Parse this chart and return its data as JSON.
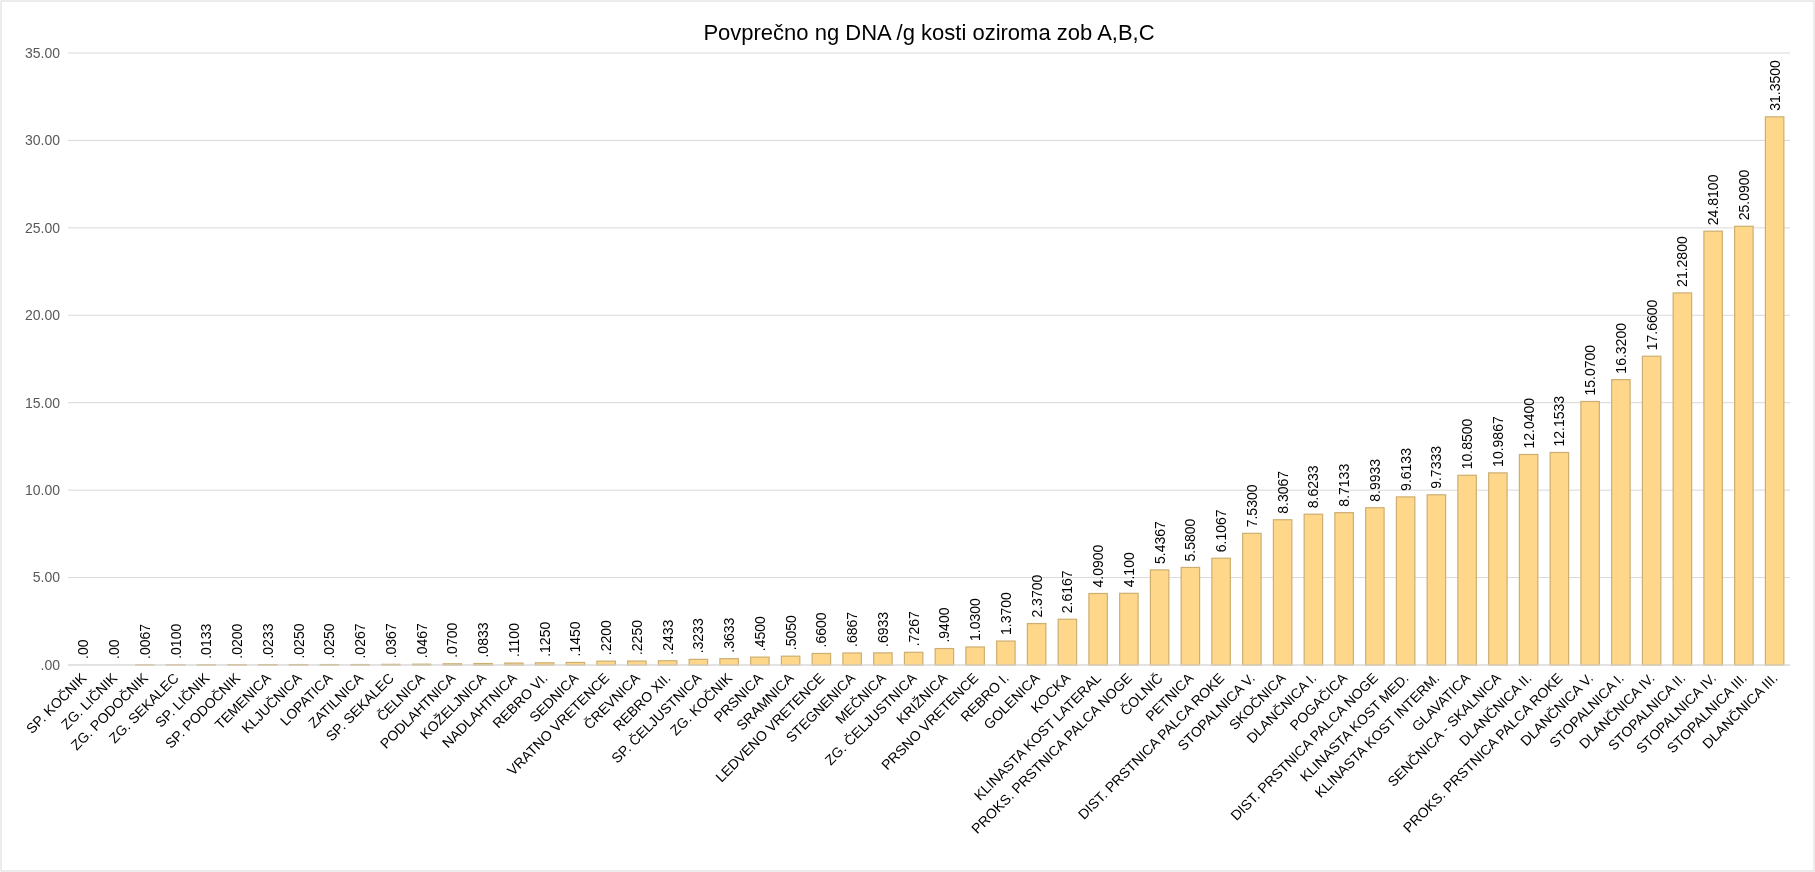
{
  "chart_data": {
    "type": "bar",
    "title": "Povprečno ng DNA /g kosti oziroma zob A,B,C",
    "categories": [
      "SP. KOČNIK",
      "ZG. LIČNIK",
      "ZG. PODOČNIK",
      "ZG. SEKALEC",
      "SP. LIČNIK",
      "SP. PODOČNIK",
      "TEMENICA",
      "KLJUČNICA",
      "LOPATICA",
      "ZATILNICA",
      "SP. SEKALEC",
      "ČELNICA",
      "PODLAHTNICA",
      "KOŽELJNICA",
      "NADLAHTNICA",
      "REBRO VI.",
      "SEDNICA",
      "VRATNO VRETENCE",
      "ČREVNICA",
      "REBRO XII.",
      "SP. ČELJUSTNICA",
      "ZG. KOČNIK",
      "PRSNICA",
      "SRAMNICA",
      "LEDVENO VRETENCE",
      "STEGNENICA",
      "MEČNICA",
      "ZG. ČELJUSTNICA",
      "KRIŽNICA",
      "PRSNO VRETENCE",
      "REBRO I.",
      "GOLENICA",
      "KOCKA",
      "KLINASTA KOST LATERAL",
      "PROKS. PRSTNICA PALCA NOGE",
      "ČOLNIČ",
      "PETNICA",
      "DIST. PRSTNICA PALCA ROKE",
      "STOPALNICA V.",
      "SKOČNICA",
      "DLANČNICA I.",
      "POGAČICA",
      "DIST. PRSTNICA PALCA NOGE",
      "KLINASTA KOST MED.",
      "KLINASTA KOST INTERM.",
      "GLAVATICA",
      "SENČNICA - SKALNICA",
      "DLANČNICA II.",
      "PROKS. PRSTNICA PALCA ROKE",
      "DLANČNICA V.",
      "STOPALNICA I.",
      "DLANČNICA IV.",
      "STOPALNICA II.",
      "STOPALNICA IV.",
      "STOPALNICA III.",
      "DLANČNICA III."
    ],
    "values": [
      0,
      0,
      0.0067,
      0.01,
      0.0133,
      0.02,
      0.0233,
      0.025,
      0.025,
      0.0267,
      0.0367,
      0.0467,
      0.07,
      0.0833,
      0.11,
      0.125,
      0.145,
      0.22,
      0.225,
      0.2433,
      0.3233,
      0.3633,
      0.45,
      0.505,
      0.66,
      0.6867,
      0.6933,
      0.7267,
      0.94,
      1.03,
      1.37,
      2.37,
      2.6167,
      4.09,
      4.1,
      5.4367,
      5.58,
      6.1067,
      7.53,
      8.3067,
      8.6233,
      8.7133,
      8.9933,
      9.6133,
      9.7333,
      10.85,
      10.9867,
      12.04,
      12.1533,
      15.07,
      16.32,
      17.66,
      21.28,
      24.81,
      25.09,
      31.35
    ],
    "value_labels": [
      ".00",
      ".00",
      ".0067",
      ".0100",
      ".0133",
      ".0200",
      ".0233",
      ".0250",
      ".0250",
      ".0267",
      ".0367",
      ".0467",
      ".0700",
      ".0833",
      ".1100",
      ".1250",
      ".1450",
      ".2200",
      ".2250",
      ".2433",
      ".3233",
      ".3633",
      ".4500",
      ".5050",
      ".6600",
      ".6867",
      ".6933",
      ".7267",
      ".9400",
      "1.0300",
      "1.3700",
      "2.3700",
      "2.6167",
      "4.0900",
      "4.100",
      "5.4367",
      "5.5800",
      "6.1067",
      "7.5300",
      "8.3067",
      "8.6233",
      "8.7133",
      "8.9933",
      "9.6133",
      "9.7333",
      "10.8500",
      "10.9867",
      "12.0400",
      "12.1533",
      "15.0700",
      "16.3200",
      "17.6600",
      "21.2800",
      "24.8100",
      "25.0900",
      "31.3500"
    ],
    "color": "#fed78b",
    "ylim": [
      0,
      35
    ],
    "yticks": [
      {
        "value": 0,
        "label": ".00"
      },
      {
        "value": 5,
        "label": "5.00"
      },
      {
        "value": 10,
        "label": "10.00"
      },
      {
        "value": 15,
        "label": "15.00"
      },
      {
        "value": 20,
        "label": "20.00"
      },
      {
        "value": 25,
        "label": "25.00"
      },
      {
        "value": 30,
        "label": "30.00"
      },
      {
        "value": 35,
        "label": "35.00"
      }
    ],
    "grid": "y"
  }
}
